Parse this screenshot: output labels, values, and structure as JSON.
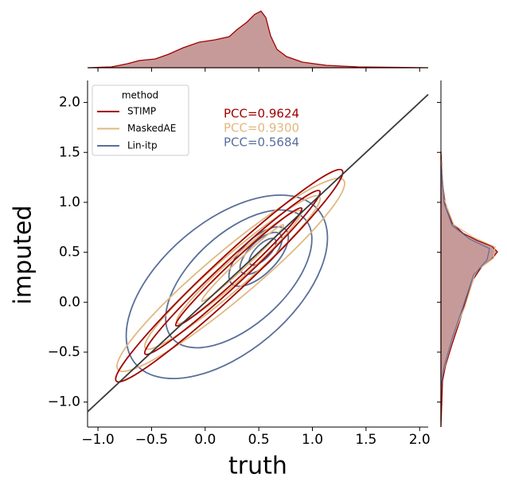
{
  "chart_data": {
    "type": "kde",
    "x_label": "truth",
    "y_label": "imputed",
    "xlim": [
      -1.097,
      2.08
    ],
    "ylim": [
      -1.25,
      2.22
    ],
    "xticks": [
      {
        "value": -1,
        "label": "−1.0"
      },
      {
        "value": -0.5,
        "label": "−0.5"
      },
      {
        "value": 0,
        "label": "0.0"
      },
      0.5,
      {
        "value": 1,
        "label": "1.0"
      },
      1.5,
      {
        "value": 2,
        "label": "2.0"
      }
    ],
    "yticks": [
      {
        "value": -1,
        "label": "−1.0"
      },
      {
        "value": -0.5,
        "label": "−0.5"
      },
      {
        "value": 0,
        "label": "0.0"
      },
      0.5,
      {
        "value": 1,
        "label": "1.0"
      },
      1.5,
      {
        "value": 2,
        "label": "2.0"
      }
    ],
    "identity_line": true,
    "legend": {
      "title": "method",
      "position": "upper left"
    },
    "series": [
      {
        "name": "STIMP",
        "color": "#a00000"
      },
      {
        "name": "MaskedAE",
        "color": "#e0b880"
      },
      {
        "name": "Lin-itp",
        "color": "#5a6f9a"
      }
    ],
    "annotations": [
      {
        "text": "PCC=0.9624",
        "color": "#a00000"
      },
      {
        "text": "PCC=0.9300",
        "color": "#e0b880"
      },
      {
        "text": "PCC=0.5684",
        "color": "#5a6f9a"
      }
    ]
  }
}
